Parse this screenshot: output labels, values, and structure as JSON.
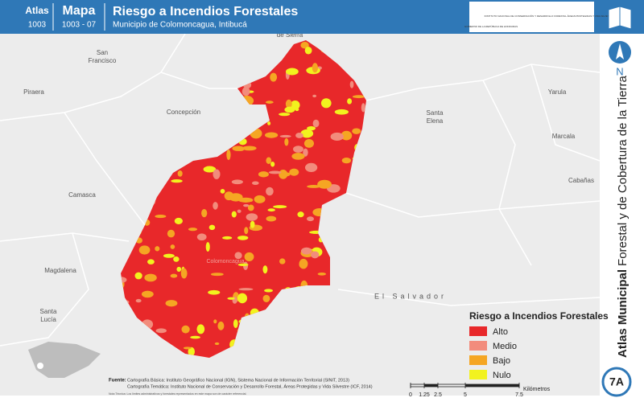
{
  "header": {
    "atlas_label": "Atlas",
    "atlas_number": "1003",
    "map_label": "Mapa",
    "map_number": "1003 - 07",
    "title": "Riesgo a Incendios Forestales",
    "subtitle": "Municipio de Colomoncagua, Intibucá",
    "logo_left": "GOBIERNO DE LA REPÚBLICA DE HONDURAS",
    "logo_right": "INSTITUTO NACIONAL DE CONSERVACIÓN Y DESARROLLO FORESTAL ÁREAS PROTEGIDAS Y VIDA SILVESTRE ICF"
  },
  "places": [
    {
      "label": "San Francisco"
    },
    {
      "label": "Piraera"
    },
    {
      "label": "Concepción"
    },
    {
      "label": "San Marcos de Sierra"
    },
    {
      "label": "Santa Elena"
    },
    {
      "label": "Yarula"
    },
    {
      "label": "Marcala"
    },
    {
      "label": "Camasca"
    },
    {
      "label": "Cabañas"
    },
    {
      "label": "Magdalena"
    },
    {
      "label": "Santa Lucía"
    },
    {
      "label": "El Salvador"
    },
    {
      "label": "Colomoncagua"
    }
  ],
  "legend": {
    "title": "Riesgo a Incendios Forestales",
    "items": [
      {
        "label": "Alto",
        "color": "#e8282a"
      },
      {
        "label": "Medio",
        "color": "#f28c7c"
      },
      {
        "label": "Bajo",
        "color": "#f5a623"
      },
      {
        "label": "Nulo",
        "color": "#f2f21e"
      }
    ]
  },
  "side": {
    "north": "N",
    "series_bold": "Atlas Municipal",
    "series_rest": "Forestal y de Cobertura de la Tierra",
    "badge": "7A"
  },
  "footer": {
    "source_label": "Fuente:",
    "lines": [
      "Cartografía Básica: Instituto Geográfico Nacional (IGN), Sistema Nacional de Información Territorial (SINIT, 2013)",
      "Cartografía Temática: Instituto Nacional de Conservación y Desarrollo Forestal, Áreas Protegidas y Vida Silvestre (ICF, 2014)"
    ],
    "note": "Nota Técnica: Los límites administrativos y forestales representados en este mapa son de carácter referencial."
  },
  "scale_bar": {
    "labels": [
      "0",
      "1.25",
      "2.5",
      "5",
      "7.5"
    ],
    "unit": "Kilómetros"
  }
}
